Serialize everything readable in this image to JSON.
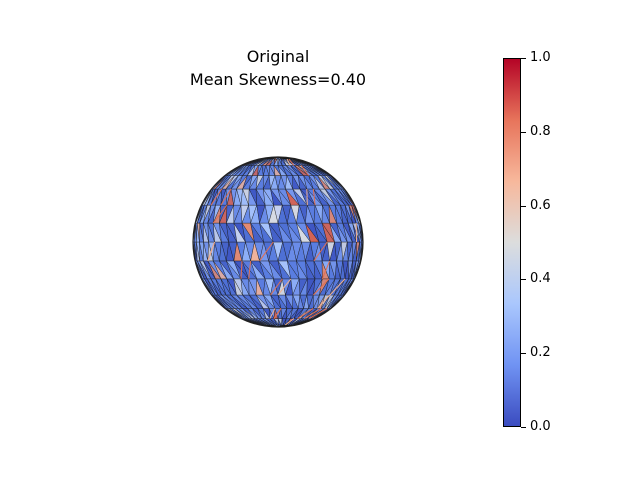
{
  "title": {
    "line1": "Original",
    "line2": "Mean Skewness=0.40"
  },
  "colorbar": {
    "min": 0.0,
    "max": 1.0,
    "colormap": "coolwarm",
    "colors": [
      "#3b4cc0",
      "#7093f3",
      "#aac7fd",
      "#dcdddd",
      "#f7b89c",
      "#e7745b",
      "#b40426"
    ],
    "ticks": [
      {
        "value": 0.0,
        "label": "0.0"
      },
      {
        "value": 0.2,
        "label": "0.2"
      },
      {
        "value": 0.4,
        "label": "0.4"
      },
      {
        "value": 0.6,
        "label": "0.6"
      },
      {
        "value": 0.8,
        "label": "0.8"
      },
      {
        "value": 1.0,
        "label": "1.0"
      }
    ]
  },
  "mesh": {
    "shape": "sphere",
    "base_color": "#5b7fe0",
    "edge_color": "#1a1a1a"
  }
}
